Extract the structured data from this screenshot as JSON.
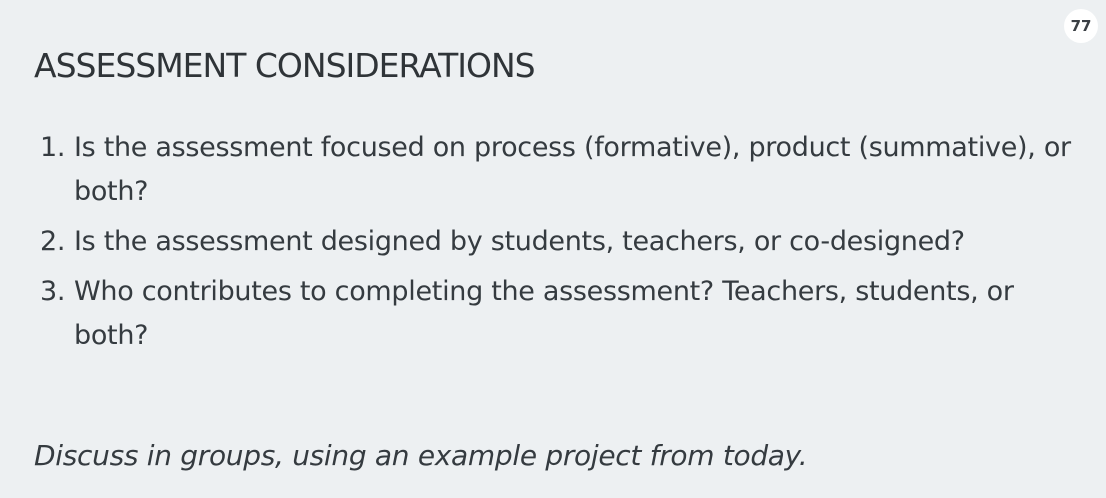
{
  "page_number": "77",
  "title": "ASSESSMENT CONSIDERATIONS",
  "questions": [
    {
      "number": "1.",
      "text": "Is the assessment focused on process (formative), product (summative), or both?"
    },
    {
      "number": "2.",
      "text": "Is the assessment designed by students, teachers, or co-designed?"
    },
    {
      "number": "3.",
      "text": "Who contributes to completing the assessment? Teachers, students, or both?"
    }
  ],
  "discussion_prompt": "Discuss in groups, using an example project from today.",
  "colors": {
    "background": "#edf0f2",
    "text": "#353b40",
    "badge_background": "#ffffff"
  }
}
